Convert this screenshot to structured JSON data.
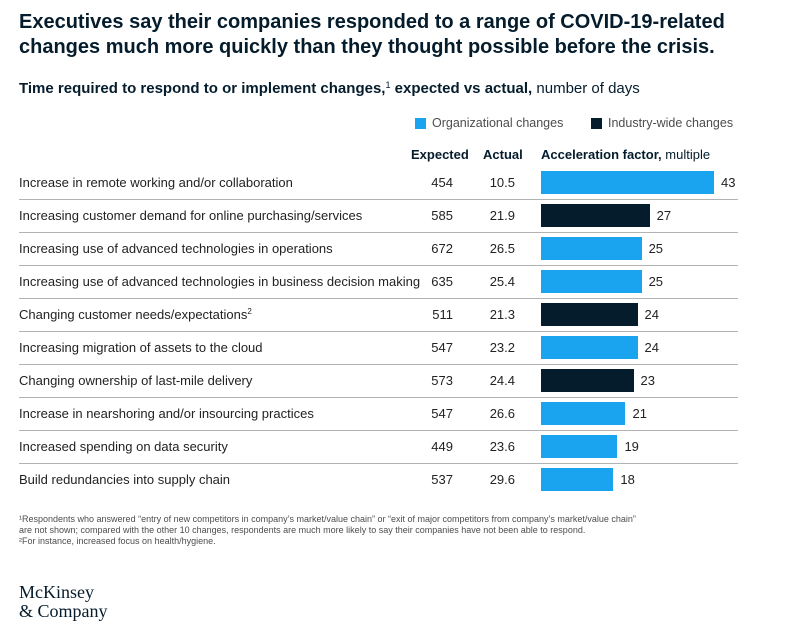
{
  "title": "Executives say their companies responded to a range of COVID-19-related changes much more quickly than they thought possible before the crisis.",
  "subtitle": {
    "bold": "Time required to respond to or implement changes,",
    "sup": "1",
    "bold2": " expected vs actual,",
    "normal": " number of days"
  },
  "legend": {
    "org_label": "Organizational changes",
    "industry_label": "Industry-wide changes"
  },
  "colors": {
    "organizational": "#1aa4ef",
    "industry": "#051c2c"
  },
  "headers": {
    "expected": "Expected",
    "actual": "Actual",
    "accel_bold": "Acceleration factor,",
    "accel_normal": " multiple"
  },
  "chart_data": {
    "type": "bar",
    "title": "Time required to respond to or implement changes, expected vs actual, number of days",
    "xlabel": "Acceleration factor, multiple",
    "ylabel": "",
    "xlim": [
      0,
      43
    ],
    "categories": [
      "Increase in remote working and/or collaboration",
      "Increasing customer demand for online purchasing/services",
      "Increasing use of advanced technologies in operations",
      "Increasing use of advanced technologies in business decision making",
      "Changing customer needs/expectations",
      "Increasing migration of assets to the cloud",
      "Changing ownership of last-mile delivery",
      "Increase in nearshoring and/or insourcing practices",
      "Increased spending on data security",
      "Build redundancies into supply chain"
    ],
    "category_footnotes": [
      "",
      "",
      "",
      "",
      "2",
      "",
      "",
      "",
      "",
      ""
    ],
    "expected": [
      "454",
      "585",
      "672",
      "635",
      "511",
      "547",
      "573",
      "547",
      "449",
      "537"
    ],
    "actual": [
      "10.5",
      "21.9",
      "26.5",
      "25.4",
      "21.3",
      "23.2",
      "24.4",
      "26.6",
      "23.6",
      "29.6"
    ],
    "values": [
      43,
      27,
      25,
      25,
      24,
      24,
      23,
      21,
      19,
      18
    ],
    "groups": [
      "organizational",
      "industry",
      "organizational",
      "organizational",
      "industry",
      "organizational",
      "industry",
      "organizational",
      "organizational",
      "organizational"
    ],
    "legend": [
      "Organizational changes",
      "Industry-wide changes"
    ]
  },
  "footnotes": {
    "fn1": "¹Respondents who answered “entry of new competitors in company’s market/value chain” or “exit of major competitors from company’s market/value chain”\n   are not shown; compared with the other 10 changes, respondents are much more likely to say their companies have not been able to respond.",
    "fn2": "²For instance, increased focus on health/hygiene."
  },
  "logo": {
    "line1": "McKinsey",
    "line2": "& Company"
  }
}
